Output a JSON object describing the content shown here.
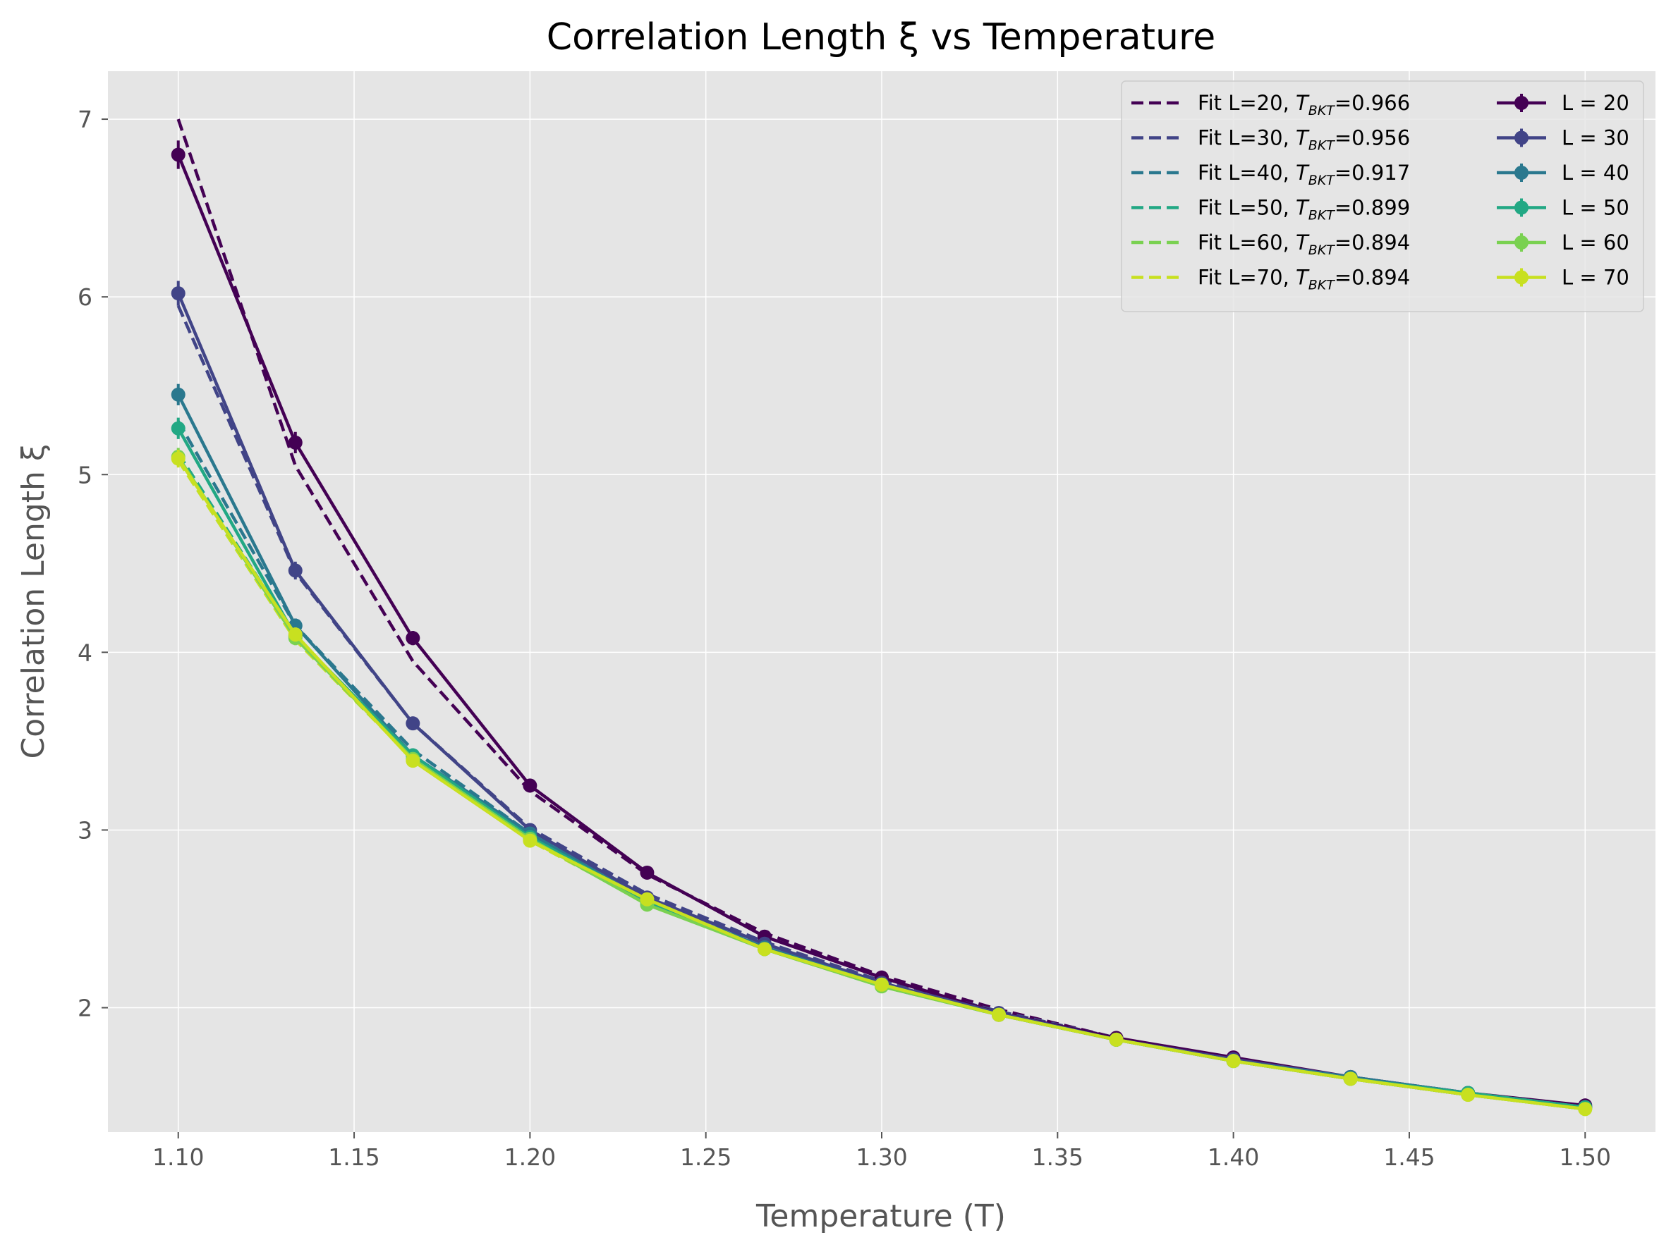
{
  "chart_data": {
    "type": "line",
    "title": "Correlation Length ξ vs Temperature",
    "xlabel": "Temperature (T)",
    "ylabel": "Correlation Length ξ",
    "xlim": [
      1.08,
      1.52
    ],
    "ylim": [
      1.3,
      7.27
    ],
    "xticks": [
      "1.10",
      "1.15",
      "1.20",
      "1.25",
      "1.30",
      "1.35",
      "1.40",
      "1.45",
      "1.50"
    ],
    "xtick_values": [
      1.1,
      1.15,
      1.2,
      1.25,
      1.3,
      1.35,
      1.4,
      1.45,
      1.5
    ],
    "yticks": [
      "2",
      "3",
      "4",
      "5",
      "6",
      "7"
    ],
    "ytick_values": [
      2,
      3,
      4,
      5,
      6,
      7
    ],
    "grid": true,
    "legend_position": "top-right",
    "background": "#e5e5e5",
    "x": [
      1.1,
      1.1333,
      1.1667,
      1.2,
      1.2333,
      1.2667,
      1.3,
      1.3333,
      1.3667,
      1.4,
      1.4333,
      1.4667,
      1.5
    ],
    "series": [
      {
        "name": "L = 20",
        "color": "#440154",
        "values": [
          6.8,
          5.18,
          4.08,
          3.25,
          2.76,
          2.4,
          2.17,
          1.97,
          1.83,
          1.72,
          1.61,
          1.52,
          1.45
        ],
        "errors": [
          0.08,
          0.06,
          0.04,
          0.03,
          0.02,
          0.02,
          0.02,
          0.01,
          0.01,
          0.01,
          0.01,
          0.01,
          0.01
        ]
      },
      {
        "name": "L = 30",
        "color": "#414487",
        "values": [
          6.02,
          4.46,
          3.6,
          3.0,
          2.62,
          2.36,
          2.14,
          1.97,
          1.82,
          1.71,
          1.61,
          1.52,
          1.44
        ],
        "errors": [
          0.07,
          0.05,
          0.03,
          0.03,
          0.02,
          0.02,
          0.02,
          0.01,
          0.01,
          0.01,
          0.01,
          0.01,
          0.01
        ]
      },
      {
        "name": "L = 40",
        "color": "#2a788e",
        "values": [
          5.45,
          4.15,
          3.42,
          2.98,
          2.6,
          2.34,
          2.13,
          1.96,
          1.82,
          1.7,
          1.61,
          1.52,
          1.44
        ],
        "errors": [
          0.06,
          0.04,
          0.03,
          0.02,
          0.02,
          0.02,
          0.01,
          0.01,
          0.01,
          0.01,
          0.01,
          0.01,
          0.01
        ]
      },
      {
        "name": "L = 50",
        "color": "#22a884",
        "values": [
          5.26,
          4.09,
          3.42,
          2.96,
          2.6,
          2.33,
          2.13,
          1.96,
          1.82,
          1.7,
          1.6,
          1.52,
          1.44
        ],
        "errors": [
          0.06,
          0.04,
          0.03,
          0.02,
          0.02,
          0.02,
          0.01,
          0.01,
          0.01,
          0.01,
          0.01,
          0.01,
          0.01
        ]
      },
      {
        "name": "L = 60",
        "color": "#7ad151",
        "values": [
          5.1,
          4.08,
          3.4,
          2.95,
          2.58,
          2.33,
          2.12,
          1.96,
          1.82,
          1.7,
          1.6,
          1.51,
          1.43
        ],
        "errors": [
          0.05,
          0.04,
          0.03,
          0.02,
          0.02,
          0.01,
          0.01,
          0.01,
          0.01,
          0.01,
          0.01,
          0.01,
          0.01
        ]
      },
      {
        "name": "L = 70",
        "color": "#c8e020",
        "values": [
          5.09,
          4.1,
          3.39,
          2.94,
          2.61,
          2.33,
          2.13,
          1.96,
          1.82,
          1.7,
          1.6,
          1.51,
          1.43
        ],
        "errors": [
          0.05,
          0.04,
          0.03,
          0.02,
          0.02,
          0.01,
          0.01,
          0.01,
          0.01,
          0.01,
          0.01,
          0.01,
          0.01
        ]
      }
    ],
    "fits": [
      {
        "name_prefix": "Fit L=20, ",
        "tbkt_value": "=0.966",
        "color": "#440154",
        "values": [
          7.0,
          5.05,
          3.95,
          3.22,
          2.75,
          2.42,
          2.18,
          1.99,
          1.83,
          1.71,
          1.6,
          1.51,
          1.44
        ]
      },
      {
        "name_prefix": "Fit L=30, ",
        "tbkt_value": "=0.956",
        "color": "#414487",
        "values": [
          5.95,
          4.45,
          3.6,
          3.01,
          2.64,
          2.37,
          2.15,
          1.98,
          1.83,
          1.71,
          1.6,
          1.51,
          1.44
        ]
      },
      {
        "name_prefix": "Fit L=40, ",
        "tbkt_value": "=0.917",
        "color": "#2a788e",
        "values": [
          5.3,
          4.15,
          3.45,
          2.98,
          2.61,
          2.34,
          2.13,
          1.96,
          1.82,
          1.7,
          1.6,
          1.51,
          1.44
        ]
      },
      {
        "name_prefix": "Fit L=50, ",
        "tbkt_value": "=0.899",
        "color": "#22a884",
        "values": [
          5.12,
          4.09,
          3.41,
          2.95,
          2.59,
          2.33,
          2.12,
          1.96,
          1.82,
          1.7,
          1.6,
          1.51,
          1.43
        ]
      },
      {
        "name_prefix": "Fit L=60, ",
        "tbkt_value": "=0.894",
        "color": "#7ad151",
        "values": [
          5.08,
          4.07,
          3.4,
          2.94,
          2.59,
          2.33,
          2.12,
          1.96,
          1.82,
          1.7,
          1.6,
          1.51,
          1.43
        ]
      },
      {
        "name_prefix": "Fit L=70, ",
        "tbkt_value": "=0.894",
        "color": "#c8e020",
        "values": [
          5.08,
          4.07,
          3.4,
          2.94,
          2.59,
          2.33,
          2.12,
          1.96,
          1.82,
          1.7,
          1.6,
          1.51,
          1.43
        ]
      }
    ],
    "legend_T": "T",
    "legend_sub": "BKT"
  }
}
